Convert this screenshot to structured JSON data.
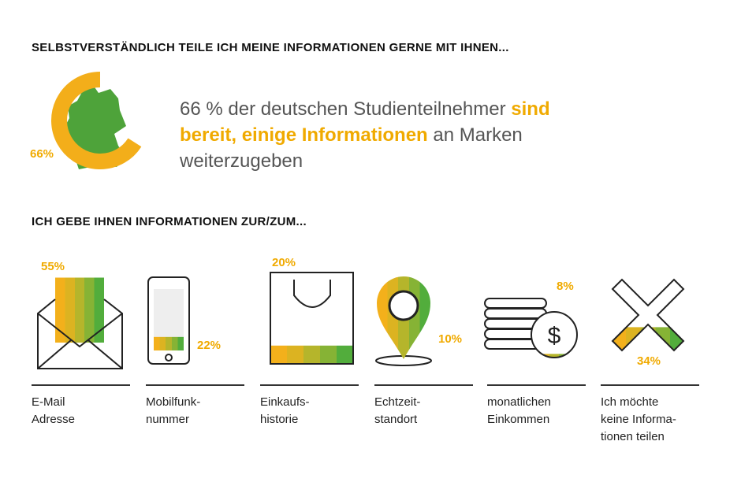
{
  "header": {
    "title": "SELBSTVERSTÄNDLICH TEILE ICH MEINE INFORMATIONEN GERNE MIT IHNEN..."
  },
  "summary": {
    "value": 66,
    "value_label": "66%",
    "statement": [
      {
        "text": "66 % der deutschen Studienteilnehmer ",
        "emphasis": false
      },
      {
        "text": "sind bereit, einige Informationen",
        "emphasis": true
      },
      {
        "text": " an Marken weiterzugeben",
        "emphasis": false
      }
    ]
  },
  "section": {
    "title": "ICH GEBE IHNEN INFORMATIONEN ZUR/ZUM..."
  },
  "items": [
    {
      "value": 55,
      "value_label": "55%",
      "label": [
        "E-Mail",
        "Adresse"
      ]
    },
    {
      "value": 22,
      "value_label": "22%",
      "label": [
        "Mobilfunk-",
        "nummer"
      ]
    },
    {
      "value": 20,
      "value_label": "20%",
      "label": [
        "Einkaufs-",
        "historie"
      ]
    },
    {
      "value": 10,
      "value_label": "10%",
      "label": [
        "Echtzeit-",
        "standort"
      ]
    },
    {
      "value": 8,
      "value_label": "8%",
      "label": [
        "monatlichen",
        "Einkommen"
      ]
    },
    {
      "value": 34,
      "value_label": "34%",
      "label": [
        "Ich möchte",
        "keine Informa-",
        "tionen teilen"
      ]
    }
  ]
}
